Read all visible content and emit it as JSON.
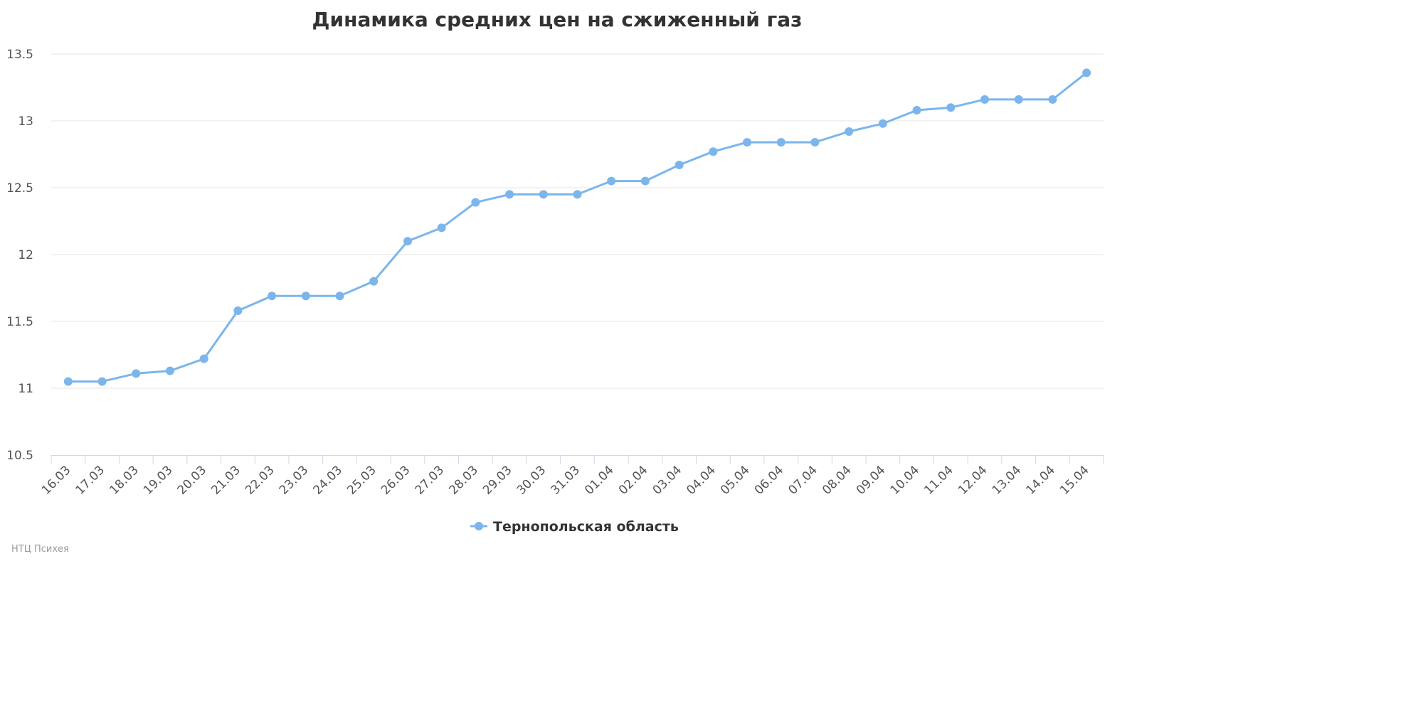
{
  "chart_data": {
    "type": "line",
    "title": "Динамика средних цен на сжиженный газ",
    "xlabel": "",
    "ylabel": "",
    "categories": [
      "16.03",
      "17.03",
      "18.03",
      "19.03",
      "20.03",
      "21.03",
      "22.03",
      "23.03",
      "24.03",
      "25.03",
      "26.03",
      "27.03",
      "28.03",
      "29.03",
      "30.03",
      "31.03",
      "01.04",
      "02.04",
      "03.04",
      "04.04",
      "05.04",
      "06.04",
      "07.04",
      "08.04",
      "09.04",
      "10.04",
      "11.04",
      "12.04",
      "13.04",
      "14.04",
      "15.04"
    ],
    "series": [
      {
        "name": "Тернопольская область",
        "color": "#7cb5ec",
        "values": [
          11.05,
          11.05,
          11.11,
          11.13,
          11.22,
          11.58,
          11.69,
          11.69,
          11.69,
          11.8,
          12.1,
          12.2,
          12.39,
          12.45,
          12.45,
          12.45,
          12.55,
          12.55,
          12.67,
          12.77,
          12.84,
          12.84,
          12.84,
          12.92,
          12.98,
          13.08,
          13.1,
          13.16,
          13.16,
          13.16,
          13.36
        ]
      }
    ],
    "ylim": [
      10.5,
      13.5
    ],
    "yticks": [
      "10.5",
      "11",
      "11.5",
      "12",
      "12.5",
      "13",
      "13.5"
    ],
    "grid": true,
    "legend_position": "bottom-center"
  },
  "credits": "НТЦ Психея"
}
